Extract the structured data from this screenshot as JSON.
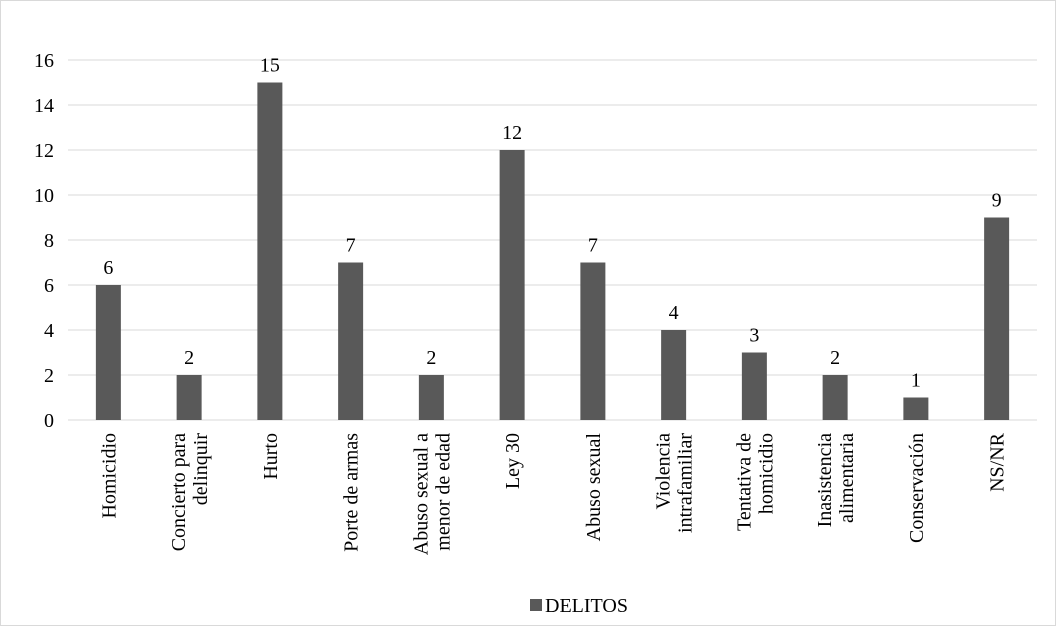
{
  "chart_data": {
    "type": "bar",
    "categories": [
      [
        "Homicidio"
      ],
      [
        "Concierto para",
        "delinquir"
      ],
      [
        "Hurto"
      ],
      [
        "Porte de armas"
      ],
      [
        "Abuso sexual a",
        "menor de edad"
      ],
      [
        "Ley 30"
      ],
      [
        "Abuso sexual"
      ],
      [
        "Violencia",
        "intrafamiliar"
      ],
      [
        "Tentativa de",
        "homicidio"
      ],
      [
        "Inasistencia",
        "alimentaria"
      ],
      [
        "Conservación"
      ],
      [
        "NS/NR"
      ]
    ],
    "series": [
      {
        "name": "DELITOS",
        "values": [
          6,
          2,
          15,
          7,
          2,
          12,
          7,
          4,
          3,
          2,
          1,
          9
        ]
      }
    ],
    "ylim": [
      0,
      16
    ],
    "yticks": [
      0,
      2,
      4,
      6,
      8,
      10,
      12,
      14,
      16
    ],
    "grid": true,
    "legend_position": "bottom",
    "data_labels": true,
    "bar_color": "#595959",
    "grid_color": "#d9d9d9"
  }
}
